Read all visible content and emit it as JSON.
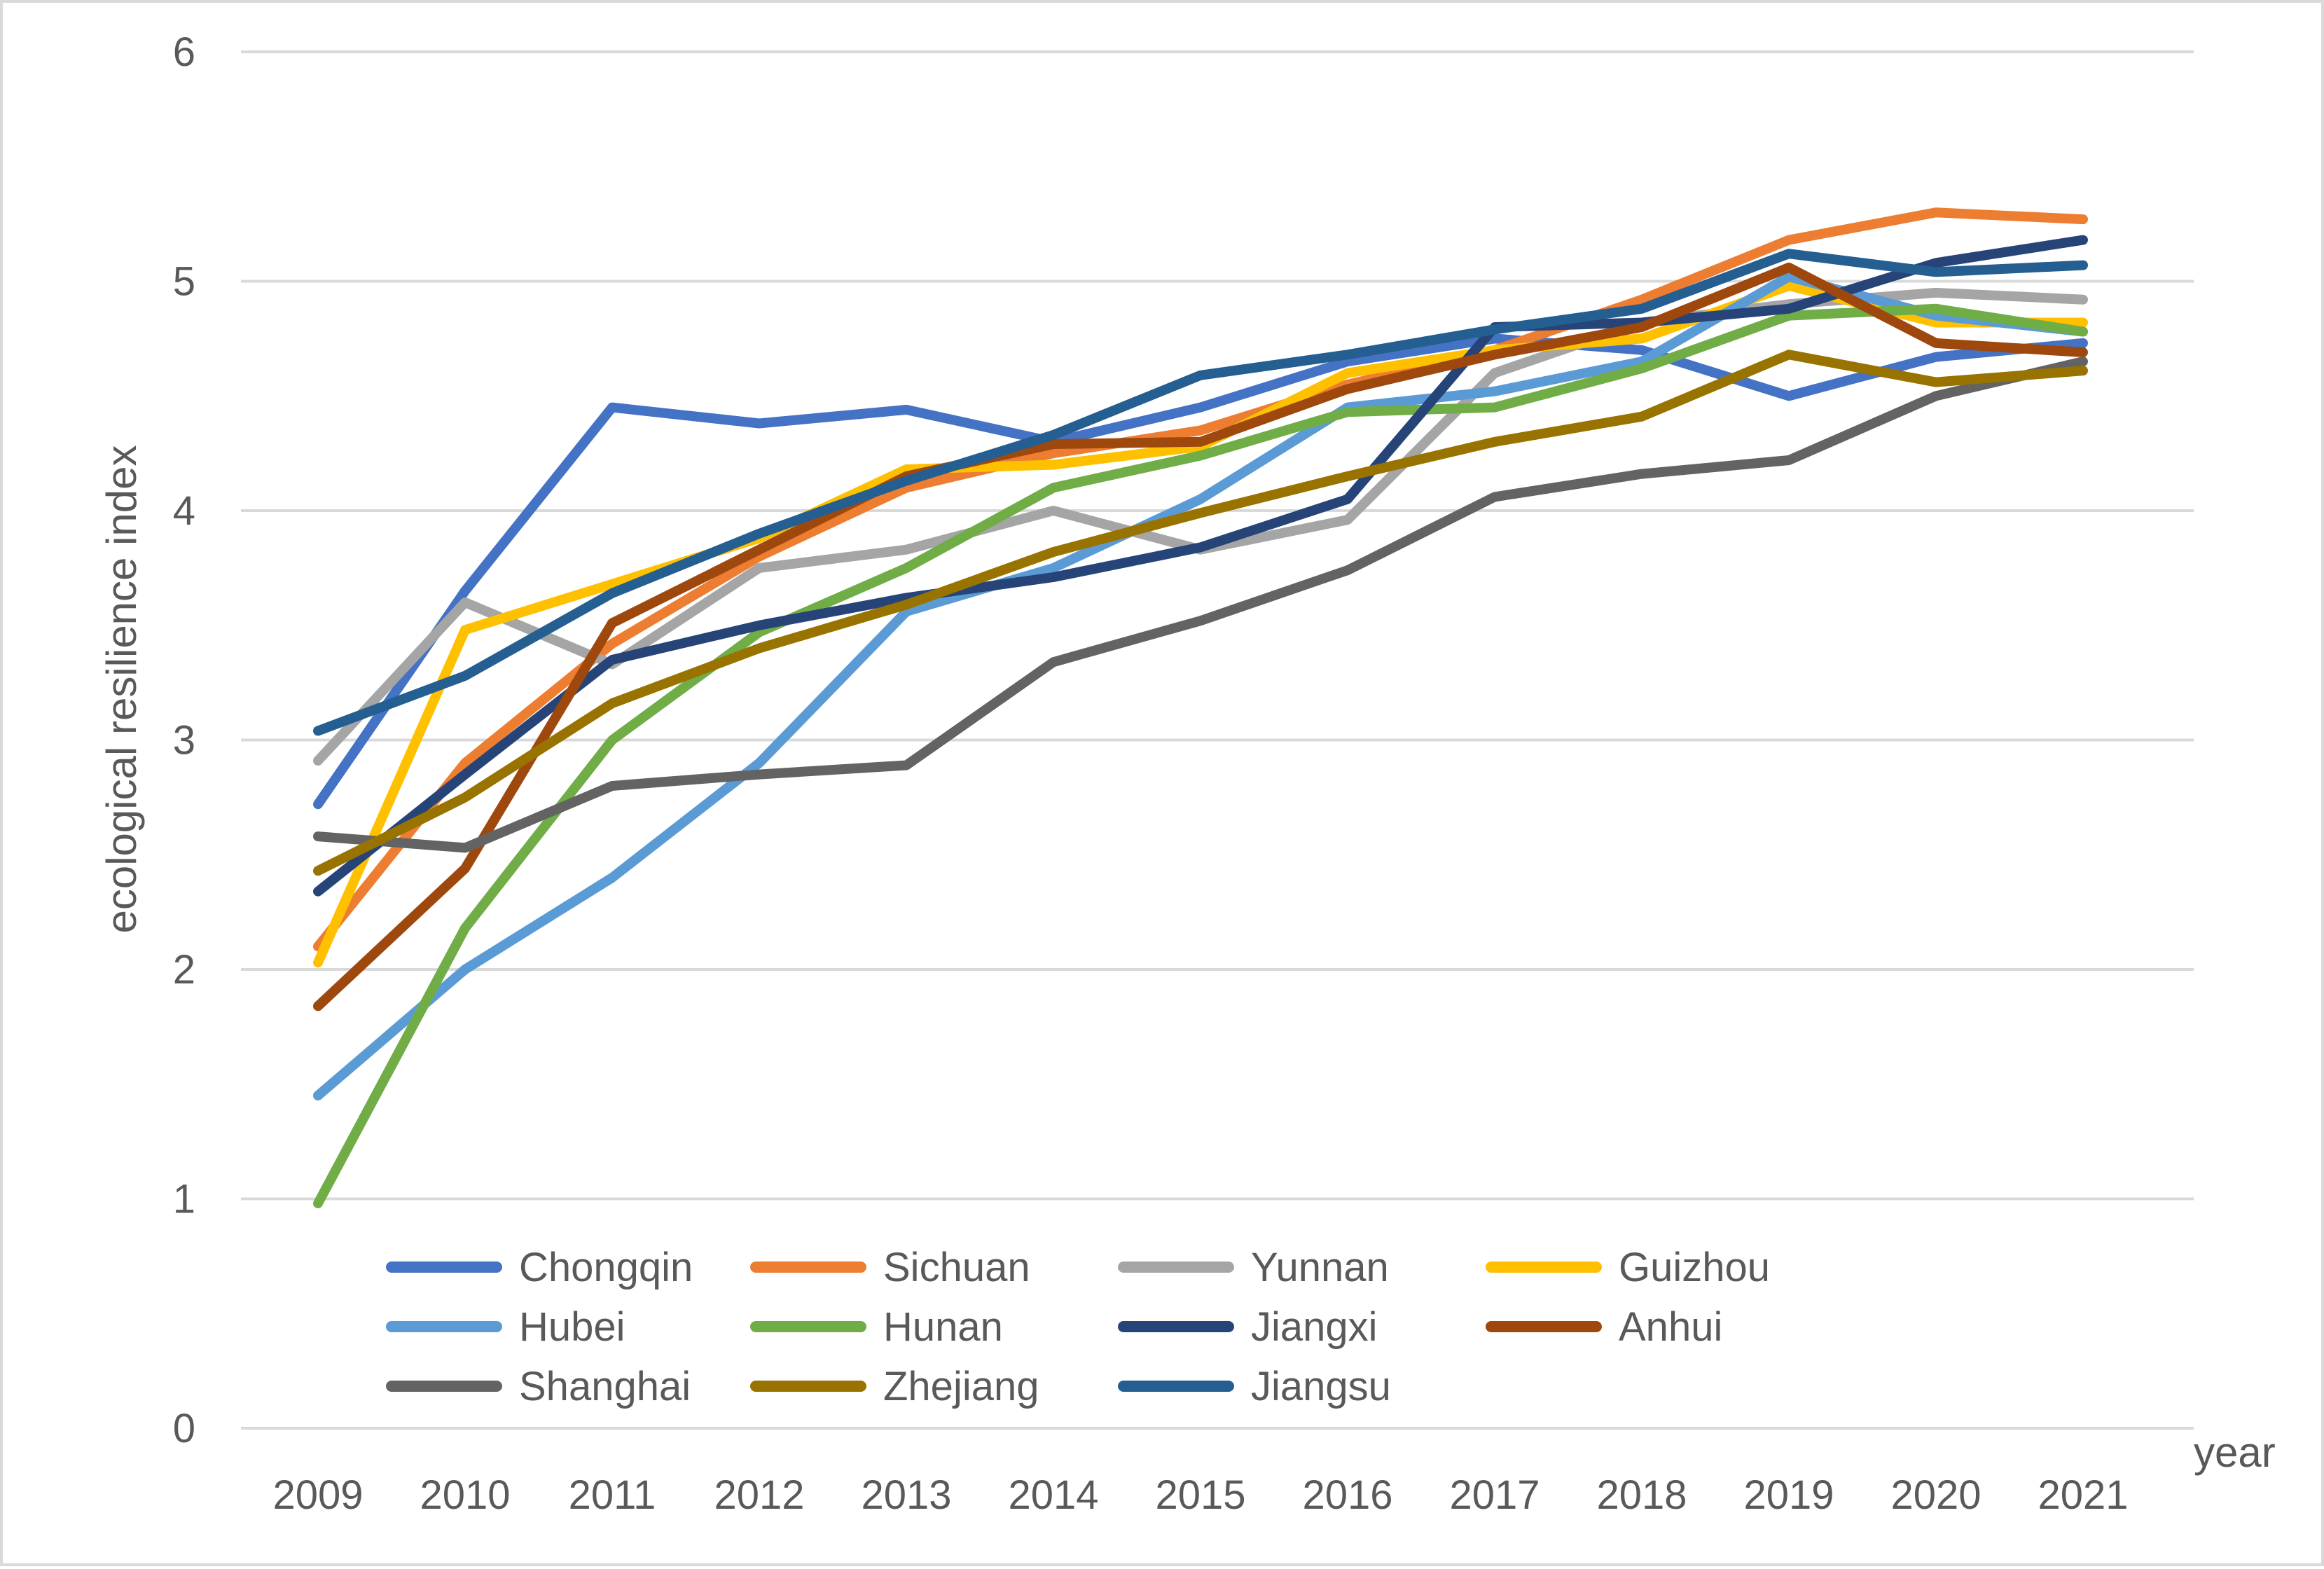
{
  "chart_data": {
    "type": "line",
    "title": "",
    "xlabel": "year",
    "ylabel": "ecological resilience index",
    "ylim": [
      0,
      6
    ],
    "yticks": [
      "0",
      "1",
      "2",
      "3",
      "4",
      "5",
      "6"
    ],
    "grid": "horizontal",
    "legend_position": "bottom-inside",
    "categories": [
      "2009",
      "2010",
      "2011",
      "2012",
      "2013",
      "2014",
      "2015",
      "2016",
      "2017",
      "2018",
      "2019",
      "2020",
      "2021"
    ],
    "series": [
      {
        "name": "Chongqin",
        "color": "#4472C4",
        "values": [
          2.72,
          3.65,
          4.45,
          4.38,
          4.44,
          4.3,
          4.45,
          4.65,
          4.75,
          4.7,
          4.5,
          4.67,
          4.73
        ]
      },
      {
        "name": "Sichuan",
        "color": "#ED7D31",
        "values": [
          2.1,
          2.9,
          3.42,
          3.8,
          4.1,
          4.25,
          4.35,
          4.55,
          4.7,
          4.92,
          5.18,
          5.3,
          5.27
        ]
      },
      {
        "name": "Yunnan",
        "color": "#A5A5A5",
        "values": [
          2.91,
          3.6,
          3.33,
          3.75,
          3.83,
          4.0,
          3.83,
          3.96,
          4.6,
          4.82,
          4.9,
          4.95,
          4.92
        ]
      },
      {
        "name": "Guizhou",
        "color": "#FFC000",
        "values": [
          2.03,
          3.48,
          3.68,
          3.88,
          4.18,
          4.2,
          4.28,
          4.6,
          4.7,
          4.75,
          4.98,
          4.82,
          4.82
        ]
      },
      {
        "name": "Hubei",
        "color": "#5B9BD5",
        "values": [
          1.45,
          2.0,
          2.4,
          2.9,
          3.56,
          3.75,
          4.05,
          4.45,
          4.52,
          4.65,
          5.02,
          4.85,
          4.78
        ]
      },
      {
        "name": "Hunan",
        "color": "#70AD47",
        "values": [
          0.98,
          2.18,
          3.0,
          3.47,
          3.75,
          4.1,
          4.24,
          4.43,
          4.45,
          4.62,
          4.85,
          4.88,
          4.78
        ]
      },
      {
        "name": "Jiangxi",
        "color": "#264478",
        "values": [
          2.34,
          2.85,
          3.35,
          3.5,
          3.62,
          3.71,
          3.84,
          4.05,
          4.8,
          4.82,
          4.88,
          5.08,
          5.18
        ]
      },
      {
        "name": "Anhui",
        "color": "#9E480E",
        "values": [
          1.84,
          2.44,
          3.51,
          3.83,
          4.15,
          4.29,
          4.3,
          4.53,
          4.68,
          4.8,
          5.06,
          4.73,
          4.69
        ]
      },
      {
        "name": "Shanghai",
        "color": "#636363",
        "values": [
          2.58,
          2.53,
          2.8,
          2.85,
          2.89,
          3.34,
          3.52,
          3.74,
          4.06,
          4.16,
          4.22,
          4.5,
          4.65
        ]
      },
      {
        "name": "Zhejiang",
        "color": "#997300",
        "values": [
          2.43,
          2.75,
          3.16,
          3.4,
          3.59,
          3.82,
          3.99,
          4.15,
          4.3,
          4.41,
          4.68,
          4.56,
          4.61
        ]
      },
      {
        "name": "Jiangsu",
        "color": "#255E91",
        "values": [
          3.04,
          3.28,
          3.64,
          3.9,
          4.13,
          4.33,
          4.59,
          4.68,
          4.79,
          4.88,
          5.12,
          5.04,
          5.07
        ]
      }
    ]
  }
}
